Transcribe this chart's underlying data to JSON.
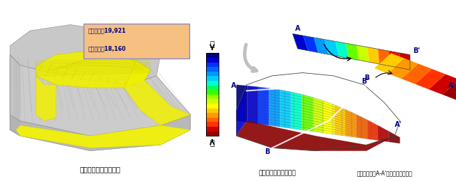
{
  "title_left": "解析モデルメッシュ図",
  "title_right": "全水頭分布（無対策）",
  "title_right2": "（対局的にはA-A'の流れが支配的）",
  "info_box_line1": "総節点数：19,921",
  "info_box_line2": "総要素数：18,160",
  "colorbar_label_high": "高",
  "colorbar_label_low": "低",
  "bg_color": "#ffffff",
  "fig_width": 6.55,
  "fig_height": 2.6,
  "info_box_bg": "#f5c080",
  "info_box_border": "#8888cc",
  "info_box_text_color": "#000080",
  "colorbar_colors": [
    "#00007f",
    "#0000cc",
    "#0033ff",
    "#0066ff",
    "#0099ff",
    "#00ccff",
    "#00ffcc",
    "#00ff66",
    "#33ff00",
    "#99ff00",
    "#ccff00",
    "#ffff00",
    "#ffcc00",
    "#ff9900",
    "#ff6600",
    "#ff3300",
    "#cc0000",
    "#990000"
  ],
  "label_color": "#000080",
  "white_line_color": "#ffffff",
  "mesh_line_color": "#999999",
  "yellow_color": "#f5f500",
  "gray_color": "#c0c0c0",
  "dark_gray": "#888888"
}
